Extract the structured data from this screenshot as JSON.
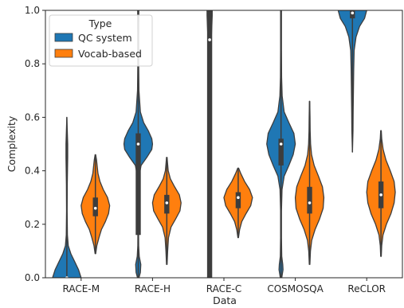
{
  "chart_data": {
    "type": "violin",
    "xlabel": "Data",
    "ylabel": "Complexity",
    "ylim": [
      0.0,
      1.0
    ],
    "yticks": [
      "0.0",
      "0.2",
      "0.4",
      "0.6",
      "0.8",
      "1.0"
    ],
    "categories": [
      "RACE-M",
      "RACE-H",
      "RACE-C",
      "COSMOSQA",
      "ReCLOR"
    ],
    "grid": false,
    "legend": {
      "title": "Type",
      "placement": "top-left",
      "entries": [
        "QC system",
        "Vocab-based"
      ]
    },
    "series": [
      {
        "name": "QC system",
        "color": "#1f77b4",
        "violins": [
          {
            "category": "RACE-M",
            "extent": [
              0.0,
              0.6
            ],
            "median": 0.0,
            "box": [
              0.0,
              0.0
            ],
            "profile": [
              [
                0.0,
                1.0
              ],
              [
                0.03,
                0.82
              ],
              [
                0.06,
                0.55
              ],
              [
                0.09,
                0.28
              ],
              [
                0.12,
                0.1
              ],
              [
                0.16,
                0.04
              ],
              [
                0.25,
                0.02
              ],
              [
                0.35,
                0.03
              ],
              [
                0.45,
                0.06
              ],
              [
                0.5,
                0.06
              ],
              [
                0.55,
                0.03
              ],
              [
                0.6,
                0.0
              ]
            ]
          },
          {
            "category": "RACE-H",
            "extent": [
              0.0,
              1.0
            ],
            "median": 0.5,
            "box": [
              0.16,
              0.54
            ],
            "profile": [
              [
                0.0,
                0.05
              ],
              [
                0.02,
                0.15
              ],
              [
                0.05,
                0.18
              ],
              [
                0.08,
                0.07
              ],
              [
                0.12,
                0.03
              ],
              [
                0.2,
                0.02
              ],
              [
                0.3,
                0.03
              ],
              [
                0.38,
                0.06
              ],
              [
                0.42,
                0.2
              ],
              [
                0.45,
                0.6
              ],
              [
                0.48,
                0.95
              ],
              [
                0.5,
                1.0
              ],
              [
                0.52,
                0.95
              ],
              [
                0.55,
                0.7
              ],
              [
                0.58,
                0.38
              ],
              [
                0.62,
                0.15
              ],
              [
                0.7,
                0.05
              ],
              [
                0.8,
                0.03
              ],
              [
                0.9,
                0.03
              ],
              [
                1.0,
                0.04
              ]
            ]
          },
          {
            "category": "RACE-C",
            "extent": [
              0.0,
              1.0
            ],
            "median": 0.89,
            "box": [
              0.0,
              1.0
            ],
            "profile": [
              [
                0.0,
                0.02
              ],
              [
                0.3,
                0.02
              ],
              [
                0.45,
                0.03
              ],
              [
                0.55,
                0.03
              ],
              [
                0.65,
                0.04
              ],
              [
                0.75,
                0.05
              ],
              [
                0.85,
                0.08
              ],
              [
                0.9,
                0.12
              ],
              [
                0.95,
                0.16
              ],
              [
                0.98,
                0.18
              ],
              [
                1.0,
                0.18
              ]
            ]
          },
          {
            "category": "COSMOSQA",
            "extent": [
              0.0,
              1.0
            ],
            "median": 0.5,
            "box": [
              0.42,
              0.52
            ],
            "profile": [
              [
                0.0,
                0.05
              ],
              [
                0.03,
                0.14
              ],
              [
                0.05,
                0.12
              ],
              [
                0.08,
                0.05
              ],
              [
                0.15,
                0.03
              ],
              [
                0.25,
                0.03
              ],
              [
                0.33,
                0.07
              ],
              [
                0.38,
                0.22
              ],
              [
                0.42,
                0.55
              ],
              [
                0.46,
                0.85
              ],
              [
                0.5,
                1.0
              ],
              [
                0.54,
                0.9
              ],
              [
                0.58,
                0.55
              ],
              [
                0.62,
                0.22
              ],
              [
                0.68,
                0.08
              ],
              [
                0.75,
                0.04
              ],
              [
                0.85,
                0.03
              ],
              [
                1.0,
                0.03
              ]
            ]
          },
          {
            "category": "ReCLOR",
            "extent": [
              0.47,
              1.0
            ],
            "median": 0.99,
            "box": [
              0.97,
              1.0
            ],
            "profile": [
              [
                0.47,
                0.0
              ],
              [
                0.55,
                0.04
              ],
              [
                0.62,
                0.05
              ],
              [
                0.7,
                0.07
              ],
              [
                0.78,
                0.09
              ],
              [
                0.85,
                0.12
              ],
              [
                0.9,
                0.25
              ],
              [
                0.94,
                0.5
              ],
              [
                0.97,
                0.85
              ],
              [
                1.0,
                1.0
              ]
            ]
          }
        ]
      },
      {
        "name": "Vocab-based",
        "color": "#ff7f0e",
        "violins": [
          {
            "category": "RACE-M",
            "extent": [
              0.09,
              0.46
            ],
            "median": 0.26,
            "box": [
              0.23,
              0.3
            ],
            "profile": [
              [
                0.09,
                0.02
              ],
              [
                0.12,
                0.1
              ],
              [
                0.15,
                0.25
              ],
              [
                0.18,
                0.42
              ],
              [
                0.21,
                0.7
              ],
              [
                0.24,
                0.92
              ],
              [
                0.27,
                1.0
              ],
              [
                0.3,
                0.85
              ],
              [
                0.33,
                0.55
              ],
              [
                0.36,
                0.32
              ],
              [
                0.39,
                0.18
              ],
              [
                0.42,
                0.12
              ],
              [
                0.44,
                0.08
              ],
              [
                0.46,
                0.02
              ]
            ]
          },
          {
            "category": "RACE-H",
            "extent": [
              0.05,
              0.45
            ],
            "median": 0.28,
            "box": [
              0.24,
              0.31
            ],
            "profile": [
              [
                0.05,
                0.02
              ],
              [
                0.1,
                0.06
              ],
              [
                0.15,
                0.12
              ],
              [
                0.19,
                0.3
              ],
              [
                0.22,
                0.62
              ],
              [
                0.25,
                0.92
              ],
              [
                0.28,
                1.0
              ],
              [
                0.31,
                0.88
              ],
              [
                0.34,
                0.55
              ],
              [
                0.37,
                0.25
              ],
              [
                0.4,
                0.1
              ],
              [
                0.43,
                0.05
              ],
              [
                0.45,
                0.02
              ]
            ]
          },
          {
            "category": "RACE-C",
            "extent": [
              0.15,
              0.41
            ],
            "median": 0.3,
            "box": [
              0.26,
              0.32
            ],
            "profile": [
              [
                0.15,
                0.02
              ],
              [
                0.18,
                0.1
              ],
              [
                0.21,
                0.25
              ],
              [
                0.24,
                0.55
              ],
              [
                0.27,
                0.88
              ],
              [
                0.3,
                1.0
              ],
              [
                0.33,
                0.8
              ],
              [
                0.36,
                0.45
              ],
              [
                0.39,
                0.18
              ],
              [
                0.41,
                0.03
              ]
            ]
          },
          {
            "category": "COSMOSQA",
            "extent": [
              0.05,
              0.66
            ],
            "median": 0.28,
            "box": [
              0.24,
              0.34
            ],
            "profile": [
              [
                0.05,
                0.02
              ],
              [
                0.1,
                0.06
              ],
              [
                0.14,
                0.15
              ],
              [
                0.18,
                0.38
              ],
              [
                0.22,
                0.7
              ],
              [
                0.26,
                0.95
              ],
              [
                0.3,
                1.0
              ],
              [
                0.34,
                0.9
              ],
              [
                0.38,
                0.62
              ],
              [
                0.42,
                0.32
              ],
              [
                0.46,
                0.14
              ],
              [
                0.5,
                0.07
              ],
              [
                0.55,
                0.04
              ],
              [
                0.6,
                0.03
              ],
              [
                0.66,
                0.01
              ]
            ]
          },
          {
            "category": "ReCLOR",
            "extent": [
              0.08,
              0.55
            ],
            "median": 0.31,
            "box": [
              0.26,
              0.36
            ],
            "profile": [
              [
                0.08,
                0.02
              ],
              [
                0.12,
                0.05
              ],
              [
                0.16,
                0.14
              ],
              [
                0.2,
                0.38
              ],
              [
                0.24,
                0.7
              ],
              [
                0.28,
                0.92
              ],
              [
                0.32,
                1.0
              ],
              [
                0.36,
                0.92
              ],
              [
                0.4,
                0.65
              ],
              [
                0.44,
                0.35
              ],
              [
                0.48,
                0.15
              ],
              [
                0.52,
                0.05
              ],
              [
                0.55,
                0.02
              ]
            ]
          }
        ]
      }
    ]
  }
}
